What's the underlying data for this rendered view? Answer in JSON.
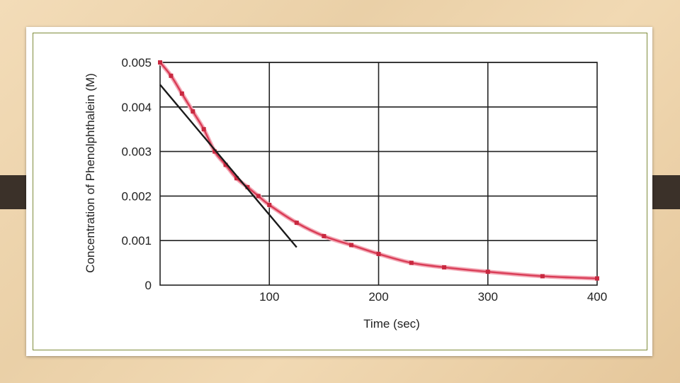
{
  "chart_data": {
    "type": "line",
    "title": "",
    "xlabel": "Time (sec)",
    "ylabel": "Concentration of Phenolphthalein (M)",
    "xlim": [
      0,
      400
    ],
    "ylim": [
      0,
      0.005
    ],
    "x_ticks": [
      {
        "value": 100,
        "label": "100"
      },
      {
        "value": 200,
        "label": "200"
      },
      {
        "value": 300,
        "label": "300"
      },
      {
        "value": 400,
        "label": "400"
      }
    ],
    "y_ticks": [
      {
        "value": 0,
        "label": "0"
      },
      {
        "value": 0.001,
        "label": "0.001"
      },
      {
        "value": 0.002,
        "label": "0.002"
      },
      {
        "value": 0.003,
        "label": "0.003"
      },
      {
        "value": 0.004,
        "label": "0.004"
      },
      {
        "value": 0.005,
        "label": "0.005"
      }
    ],
    "grid": true,
    "series": [
      {
        "color": "#d93c56",
        "x": [
          0,
          10,
          20,
          30,
          40,
          50,
          60,
          70,
          80,
          90,
          100,
          125,
          150,
          175,
          200,
          230,
          260,
          300,
          350,
          400
        ],
        "y": [
          0.005,
          0.0047,
          0.0043,
          0.0039,
          0.0035,
          0.003,
          0.0027,
          0.0024,
          0.0022,
          0.002,
          0.0018,
          0.0014,
          0.0011,
          0.0009,
          0.0007,
          0.0005,
          0.0004,
          0.0003,
          0.0002,
          0.00015
        ]
      }
    ],
    "annotations": [
      {
        "type": "tangent-line",
        "color": "#1a1a1a",
        "x": [
          0,
          125
        ],
        "y": [
          0.0045,
          0.00085
        ]
      }
    ]
  }
}
